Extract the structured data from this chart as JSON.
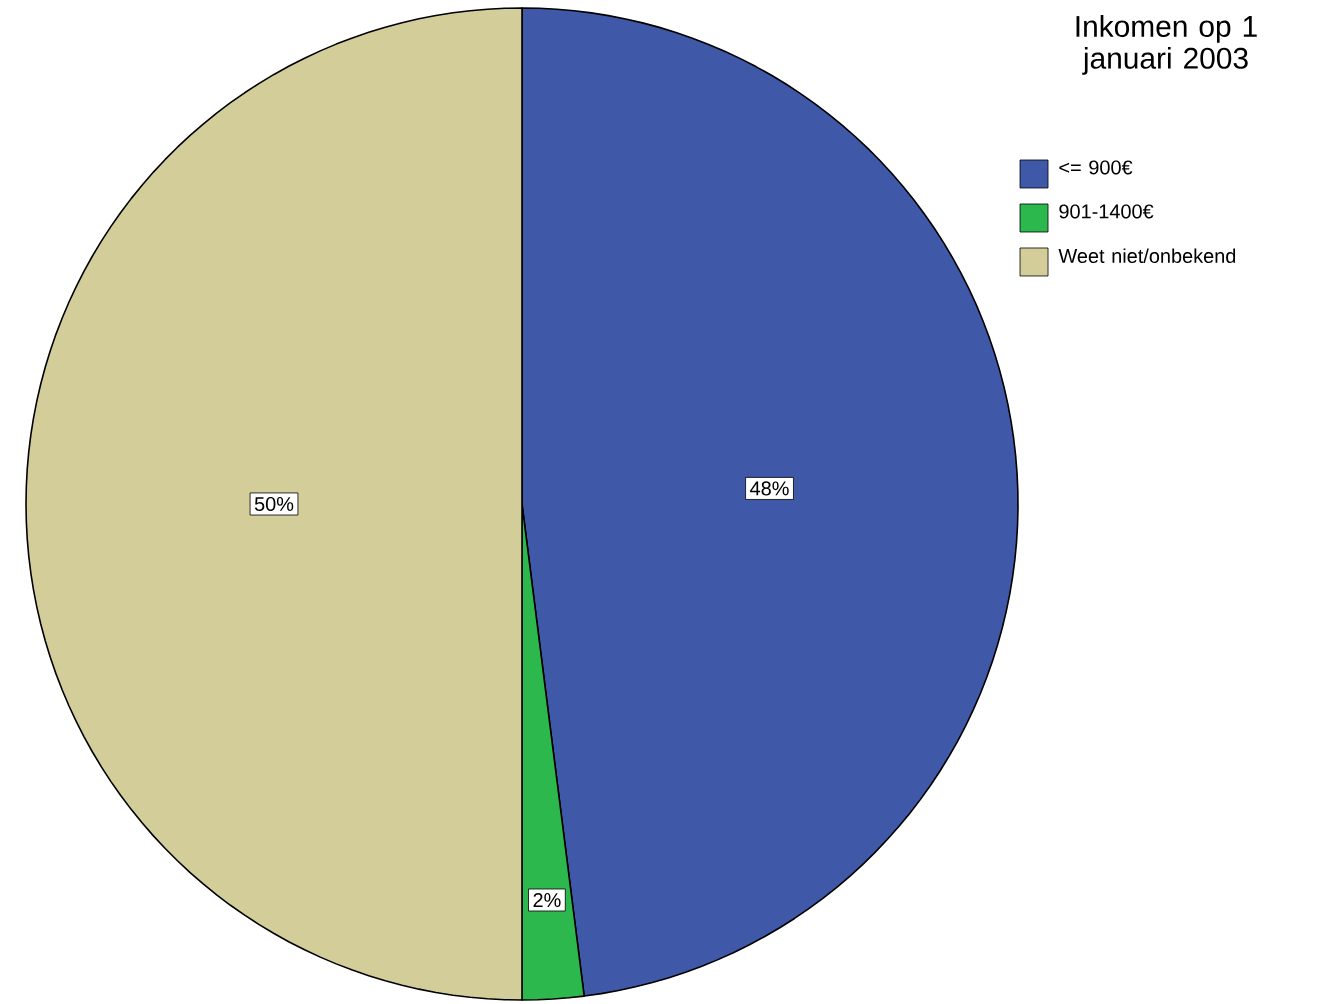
{
  "chart_data": {
    "type": "pie",
    "legend_title": "Inkomen op 1 januari 2003",
    "categories": [
      "<= 900€",
      "901-1400€",
      "Weet niet/onbekend"
    ],
    "values": [
      48,
      2,
      50
    ],
    "value_labels": [
      "48%",
      "2%",
      "50%"
    ],
    "colors": [
      "#3f58a8",
      "#2db84d",
      "#d3cd99"
    ],
    "legend": "top right"
  }
}
